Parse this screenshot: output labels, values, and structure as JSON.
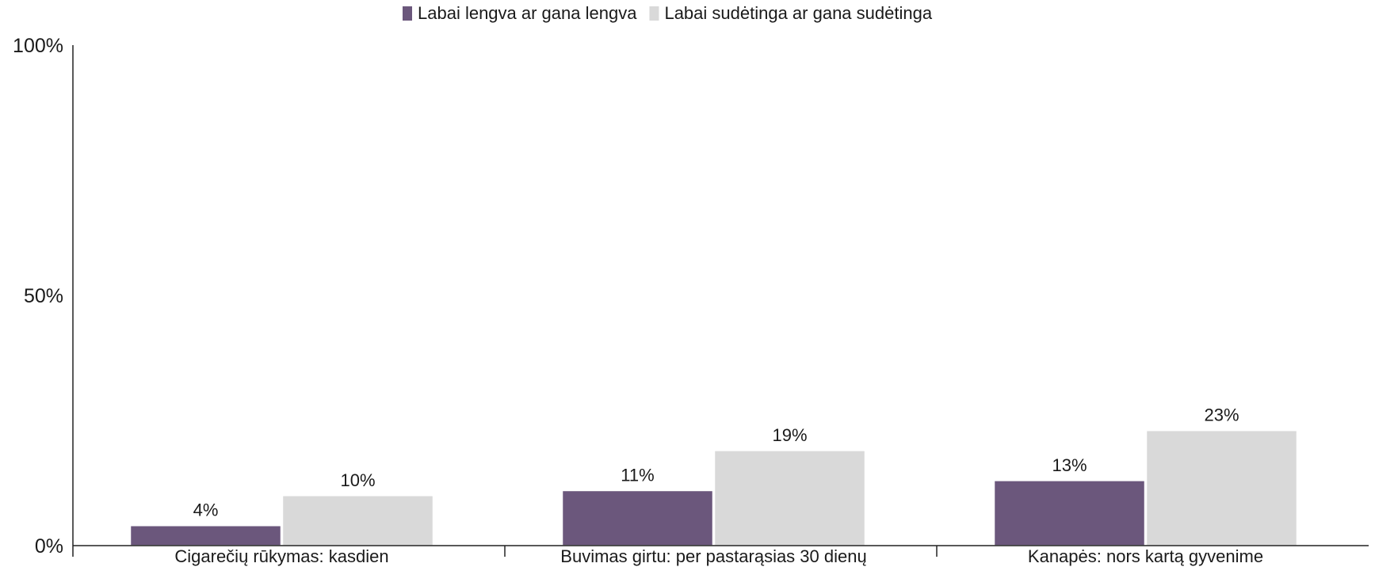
{
  "chart_data": {
    "type": "bar",
    "categories": [
      "Cigarečių rūkymas: kasdien",
      "Buvimas girtu: per pastarąsias 30 dienų",
      "Kanapės: nors kartą gyvenime"
    ],
    "series": [
      {
        "name": "Labai lengva ar gana lengva",
        "color": "#6b577c",
        "values": [
          4,
          11,
          13
        ],
        "labels": [
          "4%",
          "11%",
          "13%"
        ]
      },
      {
        "name": "Labai sudėtinga ar gana sudėtinga",
        "color": "#d9d9d9",
        "values": [
          10,
          19,
          23
        ],
        "labels": [
          "10%",
          "19%",
          "23%"
        ]
      }
    ],
    "ylim": [
      0,
      100
    ],
    "yticks": [
      {
        "value": 0,
        "label": "0%"
      },
      {
        "value": 50,
        "label": "50%"
      },
      {
        "value": 100,
        "label": "100%"
      }
    ],
    "legend_position": "top-center",
    "grid": false,
    "title": "",
    "xlabel": "",
    "ylabel": ""
  }
}
